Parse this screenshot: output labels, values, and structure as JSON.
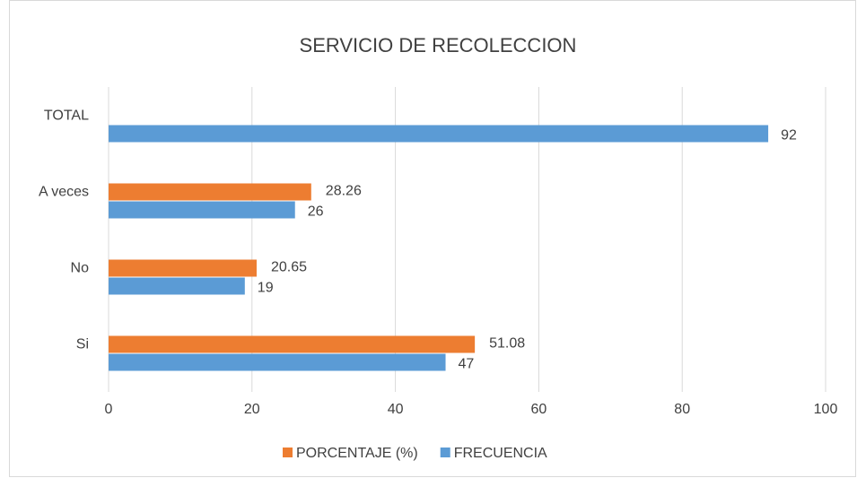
{
  "chart_data": {
    "type": "hbar",
    "title": "SERVICIO DE RECOLECCION",
    "categories": [
      "Si",
      "No",
      "A veces",
      "TOTAL"
    ],
    "series": [
      {
        "name": "PORCENTAJE (%)",
        "color": "#ed7d31",
        "values": [
          51.08,
          20.65,
          28.26,
          null
        ]
      },
      {
        "name": "FRECUENCIA",
        "color": "#5b9bd5",
        "values": [
          47,
          19,
          26,
          92
        ]
      }
    ],
    "xlim": [
      0,
      100
    ],
    "xticks": [
      0,
      20,
      40,
      60,
      80,
      100
    ],
    "grid": true,
    "legend": "bottom"
  }
}
